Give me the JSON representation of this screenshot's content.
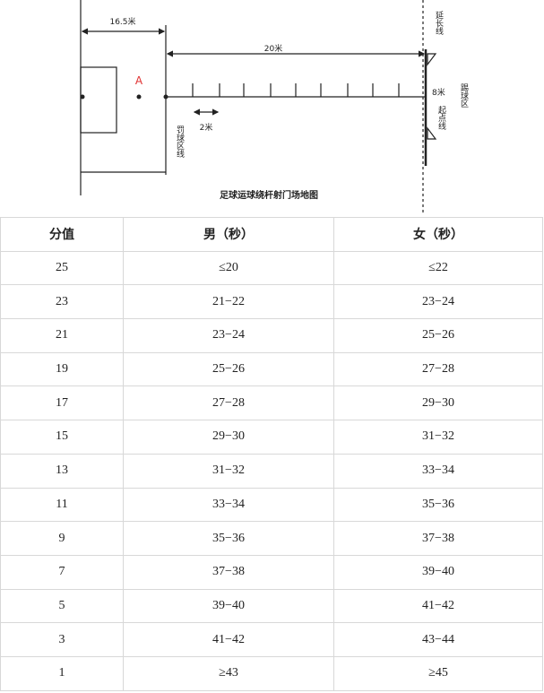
{
  "diagram": {
    "labels": {
      "width": "16.5米",
      "distance": "20米",
      "point": "A",
      "spacing": "2米",
      "penalty_line": "罚球区线",
      "extension_line": "延长线",
      "goal_width": "8米",
      "start_line": "起点线",
      "kick_zone": "踢球区"
    },
    "caption": "足球运球绕杆射门场地图"
  },
  "table": {
    "header": [
      "分值",
      "男（秒）",
      "女（秒）"
    ],
    "rows": [
      [
        "25",
        "≤20",
        "≤22"
      ],
      [
        "23",
        "21−22",
        "23−24"
      ],
      [
        "21",
        "23−24",
        "25−26"
      ],
      [
        "19",
        "25−26",
        "27−28"
      ],
      [
        "17",
        "27−28",
        "29−30"
      ],
      [
        "15",
        "29−30",
        "31−32"
      ],
      [
        "13",
        "31−32",
        "33−34"
      ],
      [
        "11",
        "33−34",
        "35−36"
      ],
      [
        "9",
        "35−36",
        "37−38"
      ],
      [
        "7",
        "37−38",
        "39−40"
      ],
      [
        "5",
        "39−40",
        "41−42"
      ],
      [
        "3",
        "41−42",
        "43−44"
      ],
      [
        "1",
        "≥43",
        "≥45"
      ]
    ]
  }
}
